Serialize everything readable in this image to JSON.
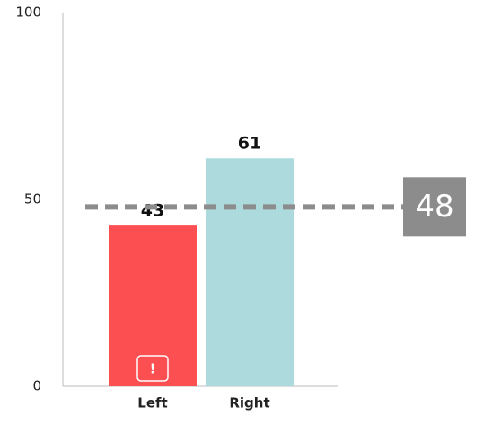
{
  "chart_data": {
    "type": "bar",
    "categories": [
      "Left",
      "Right"
    ],
    "values": [
      43,
      61
    ],
    "colors": [
      "#fc4f52",
      "#acdadd"
    ],
    "ylim": [
      0,
      100
    ],
    "yticks": [
      0,
      50,
      100
    ],
    "reference_line": {
      "value": 48,
      "color": "#8c8c8c"
    },
    "annotation": "!"
  }
}
